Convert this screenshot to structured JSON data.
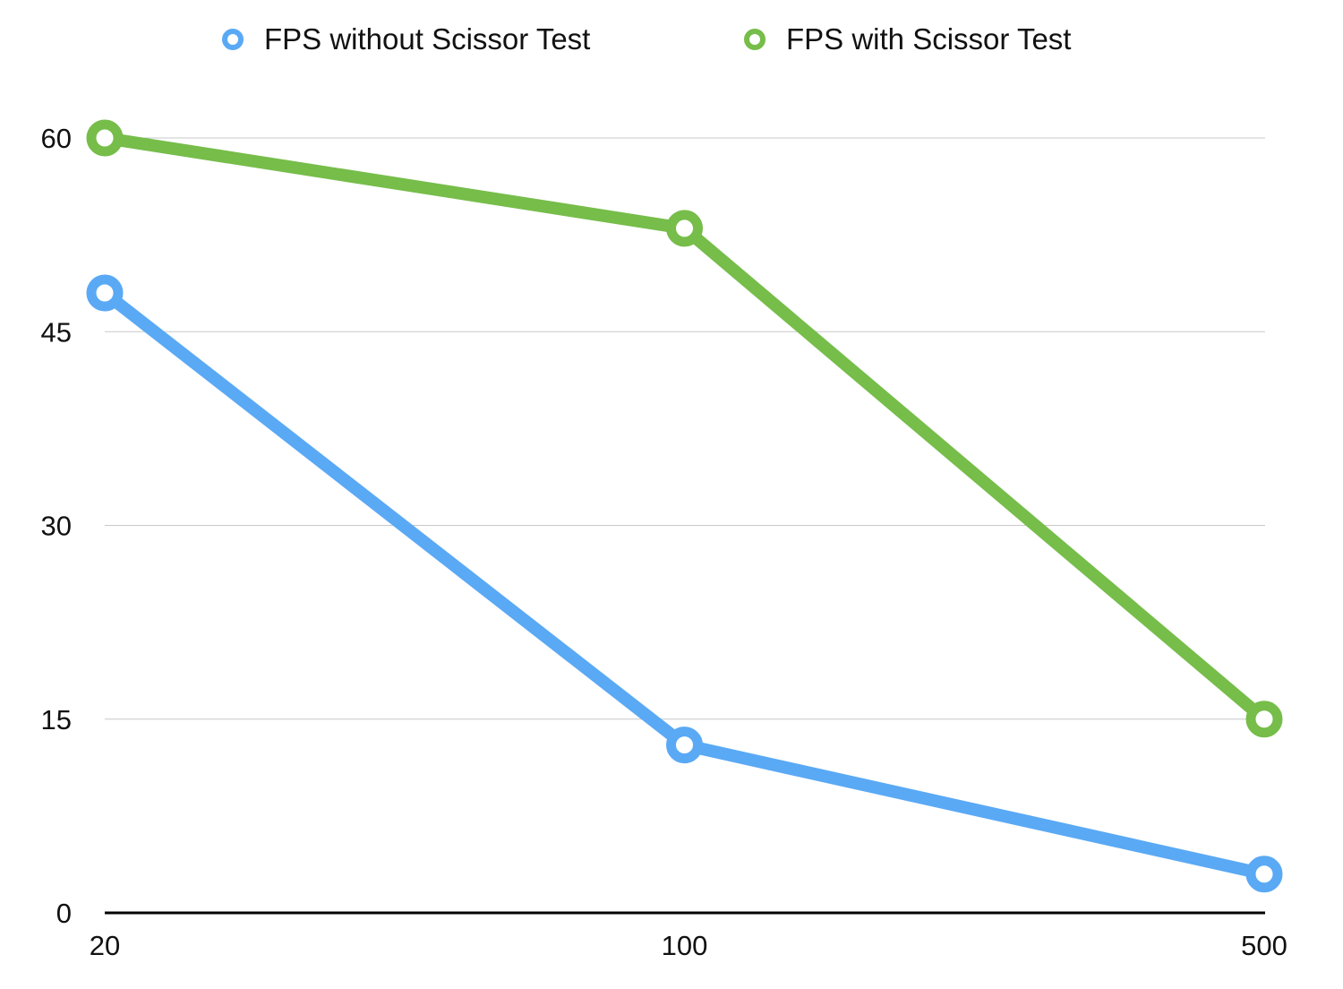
{
  "chart_data": {
    "type": "line",
    "title": "",
    "xlabel": "",
    "ylabel": "",
    "x": [
      "20",
      "100",
      "500"
    ],
    "ylim": [
      0,
      60
    ],
    "yticks": [
      0,
      15,
      30,
      45,
      60
    ],
    "grid": true,
    "legend_position": "top",
    "series": [
      {
        "name": "FPS without Scissor Test",
        "color": "#5aa9f5",
        "values": [
          48,
          13,
          3
        ]
      },
      {
        "name": "FPS with Scissor Test",
        "color": "#76bd4a",
        "values": [
          60,
          53,
          15
        ]
      }
    ]
  }
}
